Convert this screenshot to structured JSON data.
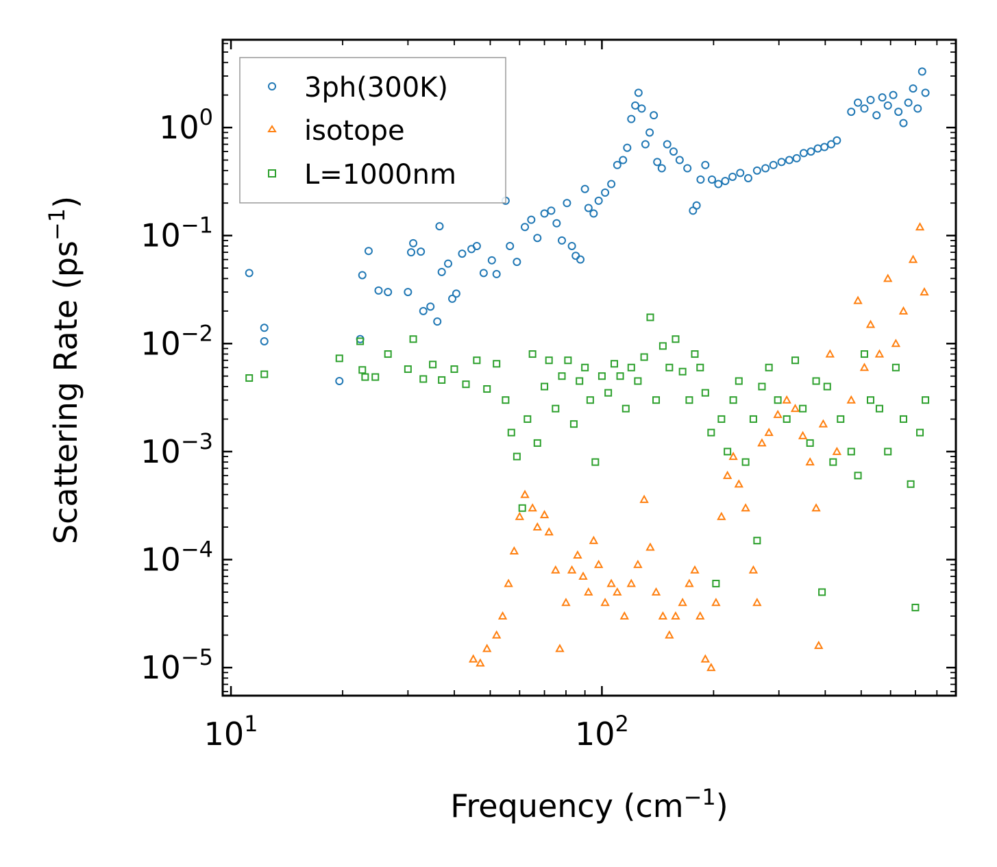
{
  "chart_data": {
    "type": "scatter",
    "xscale": "log",
    "yscale": "log",
    "xlabel": "Frequency (cm",
    "xlabel_sup": "−1",
    "xlabel_tail": ")",
    "ylabel": "Scattering Rate (ps",
    "ylabel_sup": "−1",
    "ylabel_tail": ")",
    "xlim": [
      9.5,
      900
    ],
    "ylim": [
      5.5e-06,
      6.5
    ],
    "x_ticks": [
      {
        "value": 10,
        "base": "10",
        "exp": "1"
      },
      {
        "value": 100,
        "base": "10",
        "exp": "2"
      }
    ],
    "y_ticks": [
      {
        "value": 1,
        "base": "10",
        "exp": "0"
      },
      {
        "value": 0.1,
        "base": "10",
        "exp": "−1"
      },
      {
        "value": 0.01,
        "base": "10",
        "exp": "−2"
      },
      {
        "value": 0.001,
        "base": "10",
        "exp": "−3"
      },
      {
        "value": 0.0001,
        "base": "10",
        "exp": "−4"
      },
      {
        "value": 1e-05,
        "base": "10",
        "exp": "−5"
      }
    ],
    "legend_position": "top-left",
    "series": [
      {
        "name": "3ph(300K)",
        "color": "#1f77b4",
        "marker": "circle",
        "points": [
          [
            11.2,
            0.045
          ],
          [
            12.3,
            0.014
          ],
          [
            12.3,
            0.0105
          ],
          [
            19.6,
            0.0045
          ],
          [
            22.3,
            0.011
          ],
          [
            22.6,
            0.043
          ],
          [
            23.5,
            0.072
          ],
          [
            25.0,
            0.031
          ],
          [
            26.5,
            0.03
          ],
          [
            30.0,
            0.03
          ],
          [
            30.6,
            0.07
          ],
          [
            31.0,
            0.085
          ],
          [
            32.5,
            0.071
          ],
          [
            33.0,
            0.02
          ],
          [
            34.5,
            0.022
          ],
          [
            36.0,
            0.016
          ],
          [
            36.5,
            0.122
          ],
          [
            37.0,
            0.046
          ],
          [
            38.5,
            0.055
          ],
          [
            39.5,
            0.026
          ],
          [
            40.5,
            0.029
          ],
          [
            42.0,
            0.068
          ],
          [
            44.5,
            0.075
          ],
          [
            46.0,
            0.08
          ],
          [
            48.0,
            0.045
          ],
          [
            50.5,
            0.059
          ],
          [
            52.0,
            0.044
          ],
          [
            55.0,
            0.21
          ],
          [
            56.5,
            0.08
          ],
          [
            59.0,
            0.057
          ],
          [
            62.0,
            0.12
          ],
          [
            64.5,
            0.14
          ],
          [
            67.0,
            0.095
          ],
          [
            70.0,
            0.16
          ],
          [
            73.0,
            0.17
          ],
          [
            75.5,
            0.13
          ],
          [
            78.0,
            0.09
          ],
          [
            80.5,
            0.2
          ],
          [
            83.0,
            0.08
          ],
          [
            85.0,
            0.065
          ],
          [
            87.5,
            0.06
          ],
          [
            90.0,
            0.27
          ],
          [
            92.0,
            0.18
          ],
          [
            95.0,
            0.16
          ],
          [
            98.0,
            0.21
          ],
          [
            102.0,
            0.25
          ],
          [
            106.0,
            0.3
          ],
          [
            110.0,
            0.45
          ],
          [
            114.0,
            0.5
          ],
          [
            117.0,
            0.65
          ],
          [
            120.0,
            1.2
          ],
          [
            123.0,
            1.6
          ],
          [
            125.5,
            2.1
          ],
          [
            128.0,
            1.5
          ],
          [
            131.0,
            0.7
          ],
          [
            134.5,
            0.9
          ],
          [
            138.0,
            1.3
          ],
          [
            141.0,
            0.48
          ],
          [
            145.0,
            0.42
          ],
          [
            150.0,
            0.7
          ],
          [
            156.0,
            0.6
          ],
          [
            162.0,
            0.5
          ],
          [
            170.0,
            0.42
          ],
          [
            176.0,
            0.17
          ],
          [
            180.0,
            0.19
          ],
          [
            184.5,
            0.33
          ],
          [
            190.0,
            0.45
          ],
          [
            198.0,
            0.33
          ],
          [
            206.0,
            0.3
          ],
          [
            215.0,
            0.32
          ],
          [
            225.0,
            0.35
          ],
          [
            236.0,
            0.38
          ],
          [
            248.0,
            0.34
          ],
          [
            262.0,
            0.4
          ],
          [
            276.0,
            0.42
          ],
          [
            290.0,
            0.45
          ],
          [
            305.0,
            0.48
          ],
          [
            320.0,
            0.5
          ],
          [
            335.0,
            0.52
          ],
          [
            350.0,
            0.58
          ],
          [
            366.0,
            0.6
          ],
          [
            382.0,
            0.64
          ],
          [
            398.0,
            0.66
          ],
          [
            415.0,
            0.7
          ],
          [
            430.0,
            0.76
          ],
          [
            470.0,
            1.4
          ],
          [
            490.0,
            1.7
          ],
          [
            510.0,
            1.5
          ],
          [
            530.0,
            1.8
          ],
          [
            550.0,
            1.3
          ],
          [
            570.0,
            1.9
          ],
          [
            590.0,
            1.6
          ],
          [
            610.0,
            2.0
          ],
          [
            630.0,
            1.4
          ],
          [
            650.0,
            1.1
          ],
          [
            670.0,
            1.7
          ],
          [
            690.0,
            2.3
          ],
          [
            710.0,
            1.5
          ],
          [
            730.0,
            3.3
          ],
          [
            745.0,
            2.1
          ]
        ]
      },
      {
        "name": "isotope",
        "color": "#ff7f0e",
        "marker": "triangle",
        "points": [
          [
            45.0,
            1.2e-05
          ],
          [
            47.0,
            1.1e-05
          ],
          [
            49.0,
            1.5e-05
          ],
          [
            52.0,
            2e-05
          ],
          [
            54.0,
            3e-05
          ],
          [
            56.0,
            6e-05
          ],
          [
            58.0,
            0.00012
          ],
          [
            60.0,
            0.00025
          ],
          [
            62.0,
            0.0004
          ],
          [
            65.0,
            0.0003
          ],
          [
            67.0,
            0.0002
          ],
          [
            70.0,
            0.00026
          ],
          [
            72.0,
            0.00018
          ],
          [
            75.0,
            8e-05
          ],
          [
            77.0,
            1.5e-05
          ],
          [
            80.0,
            4e-05
          ],
          [
            83.0,
            8e-05
          ],
          [
            86.0,
            0.00011
          ],
          [
            89.0,
            7e-05
          ],
          [
            92.0,
            5e-05
          ],
          [
            95.0,
            0.00015
          ],
          [
            98.0,
            9e-05
          ],
          [
            102.0,
            4e-05
          ],
          [
            106.0,
            6e-05
          ],
          [
            110.0,
            5e-05
          ],
          [
            115.0,
            3e-05
          ],
          [
            120.0,
            6e-05
          ],
          [
            125.0,
            9e-05
          ],
          [
            130.0,
            0.00036
          ],
          [
            135.0,
            0.00013
          ],
          [
            140.0,
            5e-05
          ],
          [
            146.0,
            3e-05
          ],
          [
            152.0,
            2e-05
          ],
          [
            158.0,
            3e-05
          ],
          [
            165.0,
            4e-05
          ],
          [
            172.0,
            6e-05
          ],
          [
            178.0,
            8e-05
          ],
          [
            184.0,
            3e-05
          ],
          [
            190.0,
            1.2e-05
          ],
          [
            197.0,
            1e-05
          ],
          [
            203.0,
            4e-05
          ],
          [
            210.0,
            0.00025
          ],
          [
            218.0,
            0.0006
          ],
          [
            226.0,
            0.0009
          ],
          [
            234.0,
            0.0005
          ],
          [
            244.0,
            0.0003
          ],
          [
            256.0,
            8e-05
          ],
          [
            262.0,
            4e-05
          ],
          [
            270.0,
            0.0012
          ],
          [
            282.0,
            0.0015
          ],
          [
            298.0,
            0.0022
          ],
          [
            315.0,
            0.003
          ],
          [
            332.0,
            0.0025
          ],
          [
            348.0,
            0.0014
          ],
          [
            364.0,
            0.0008
          ],
          [
            378.0,
            0.0003
          ],
          [
            384.0,
            1.6e-05
          ],
          [
            395.0,
            0.0018
          ],
          [
            412.0,
            0.008
          ],
          [
            430.0,
            0.001
          ],
          [
            470.0,
            0.003
          ],
          [
            490.0,
            0.025
          ],
          [
            510.0,
            0.006
          ],
          [
            530.0,
            0.015
          ],
          [
            560.0,
            0.008
          ],
          [
            590.0,
            0.04
          ],
          [
            620.0,
            0.01
          ],
          [
            650.0,
            0.02
          ],
          [
            690.0,
            0.06
          ],
          [
            720.0,
            0.12
          ],
          [
            740.0,
            0.03
          ]
        ]
      },
      {
        "name": "L=1000nm",
        "color": "#2ca02c",
        "marker": "square",
        "points": [
          [
            11.2,
            0.0048
          ],
          [
            12.3,
            0.0052
          ],
          [
            19.6,
            0.0073
          ],
          [
            22.3,
            0.0105
          ],
          [
            22.6,
            0.0057
          ],
          [
            23.0,
            0.0049
          ],
          [
            24.5,
            0.0049
          ],
          [
            26.5,
            0.008
          ],
          [
            30.0,
            0.0058
          ],
          [
            31.0,
            0.011
          ],
          [
            33.0,
            0.0047
          ],
          [
            35.0,
            0.0064
          ],
          [
            37.0,
            0.0046
          ],
          [
            40.0,
            0.0058
          ],
          [
            43.0,
            0.0042
          ],
          [
            46.0,
            0.007
          ],
          [
            49.0,
            0.0038
          ],
          [
            52.0,
            0.0065
          ],
          [
            55.0,
            0.003
          ],
          [
            57.0,
            0.0015
          ],
          [
            59.0,
            0.0009
          ],
          [
            61.0,
            0.0003
          ],
          [
            63.0,
            0.002
          ],
          [
            65.0,
            0.008
          ],
          [
            67.0,
            0.0012
          ],
          [
            70.0,
            0.004
          ],
          [
            72.0,
            0.007
          ],
          [
            75.0,
            0.0025
          ],
          [
            78.0,
            0.005
          ],
          [
            81.0,
            0.007
          ],
          [
            84.0,
            0.0018
          ],
          [
            87.0,
            0.0045
          ],
          [
            90.0,
            0.006
          ],
          [
            93.0,
            0.003
          ],
          [
            96.0,
            0.0008
          ],
          [
            100.0,
            0.005
          ],
          [
            104.0,
            0.0035
          ],
          [
            108.0,
            0.0065
          ],
          [
            112.0,
            0.005
          ],
          [
            116.0,
            0.0025
          ],
          [
            120.0,
            0.006
          ],
          [
            125.0,
            0.0045
          ],
          [
            130.0,
            0.0075
          ],
          [
            135.0,
            0.0175
          ],
          [
            140.0,
            0.003
          ],
          [
            146.0,
            0.0095
          ],
          [
            152.0,
            0.006
          ],
          [
            158.0,
            0.011
          ],
          [
            165.0,
            0.0055
          ],
          [
            172.0,
            0.003
          ],
          [
            178.0,
            0.008
          ],
          [
            184.0,
            0.006
          ],
          [
            190.0,
            0.0035
          ],
          [
            197.0,
            0.0015
          ],
          [
            203.0,
            6e-05
          ],
          [
            210.0,
            0.002
          ],
          [
            218.0,
            0.001
          ],
          [
            226.0,
            0.003
          ],
          [
            234.0,
            0.0045
          ],
          [
            244.0,
            0.0008
          ],
          [
            256.0,
            0.002
          ],
          [
            262.0,
            0.00015
          ],
          [
            270.0,
            0.004
          ],
          [
            282.0,
            0.006
          ],
          [
            298.0,
            0.003
          ],
          [
            315.0,
            0.002
          ],
          [
            332.0,
            0.007
          ],
          [
            348.0,
            0.0025
          ],
          [
            364.0,
            0.0012
          ],
          [
            378.0,
            0.0045
          ],
          [
            392.0,
            5e-05
          ],
          [
            405.0,
            0.004
          ],
          [
            420.0,
            0.0008
          ],
          [
            440.0,
            0.002
          ],
          [
            470.0,
            0.001
          ],
          [
            490.0,
            0.0006
          ],
          [
            510.0,
            0.008
          ],
          [
            530.0,
            0.003
          ],
          [
            560.0,
            0.0025
          ],
          [
            590.0,
            0.001
          ],
          [
            620.0,
            0.006
          ],
          [
            650.0,
            0.002
          ],
          [
            680.0,
            0.0005
          ],
          [
            700.0,
            3.6e-05
          ],
          [
            720.0,
            0.0015
          ],
          [
            745.0,
            0.003
          ]
        ]
      }
    ]
  }
}
